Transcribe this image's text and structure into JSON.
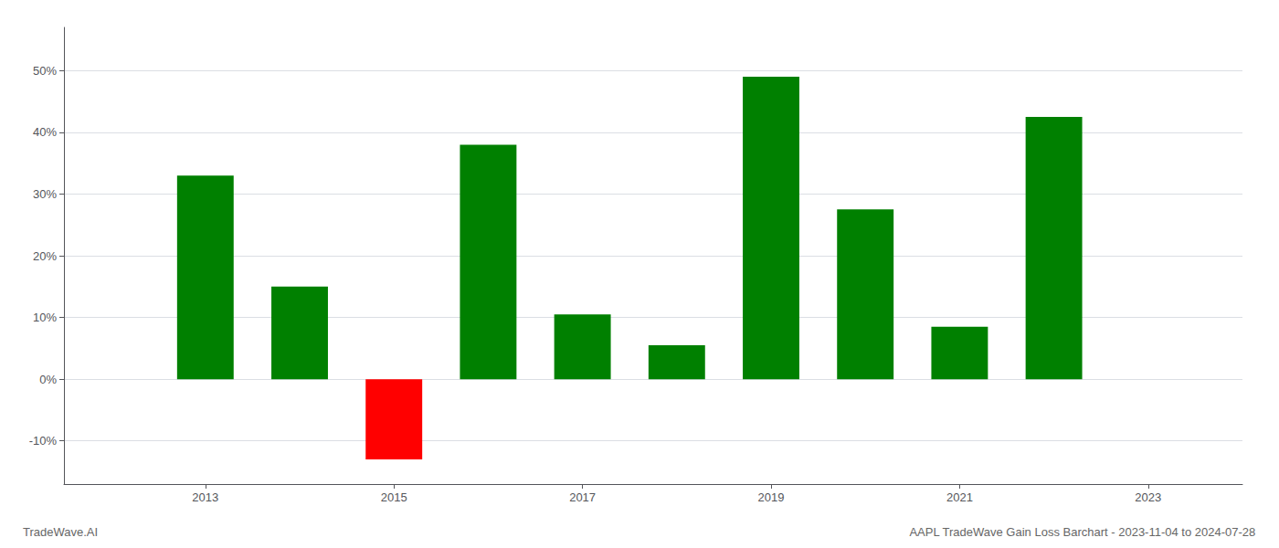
{
  "chart_data": {
    "type": "bar",
    "title": "AAPL TradeWave Gain Loss Barchart - 2023-11-04 to 2024-07-28",
    "annotations": [
      "TradeWave.AI"
    ],
    "x": [
      2013,
      2014,
      2015,
      2016,
      2017,
      2018,
      2019,
      2020,
      2021,
      2022
    ],
    "values": [
      33.0,
      15.0,
      -13.0,
      38.0,
      10.5,
      5.5,
      49.0,
      27.5,
      8.5,
      42.5
    ],
    "colors": [
      "#008000",
      "#008000",
      "#ff0000",
      "#008000",
      "#008000",
      "#008000",
      "#008000",
      "#008000",
      "#008000",
      "#008000"
    ],
    "xlim": [
      2011.5,
      2024.0
    ],
    "xticks": [
      2013,
      2015,
      2017,
      2019,
      2021,
      2023
    ],
    "ylim": [
      -17,
      57
    ],
    "yticks": [
      {
        "value": -10,
        "label": "-10%"
      },
      {
        "value": 0,
        "label": "0%"
      },
      {
        "value": 10,
        "label": "10%"
      },
      {
        "value": 20,
        "label": "20%"
      },
      {
        "value": 30,
        "label": "30%"
      },
      {
        "value": 40,
        "label": "40%"
      },
      {
        "value": 50,
        "label": "50%"
      }
    ],
    "grid": true
  }
}
